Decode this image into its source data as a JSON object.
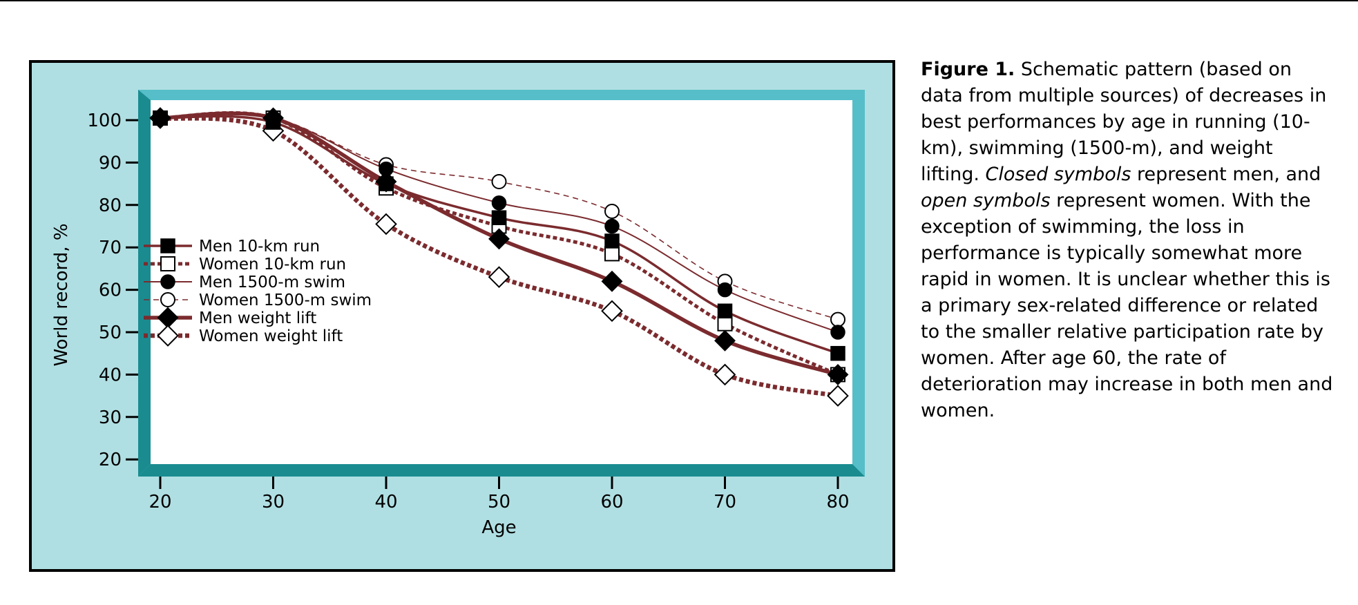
{
  "caption": {
    "label": "Figure 1.",
    "part1": " Schematic pattern (based on data from multiple sources) of decreases in best performances by age in running (10-km), swimming (1500-m), and weight lifting. ",
    "closed": "Closed symbols",
    "part2": " represent men, and ",
    "open": "open symbols",
    "part3": " represent women. With the exception of swimming, the loss in performance is typically somewhat more rapid in women. It is unclear whether this is a primary sex-related difference or related to the smaller relative participation rate by women. After age 60, the rate of deterioration may increase in both men and women."
  },
  "chart_data": {
    "type": "line",
    "title": "",
    "xlabel": "Age",
    "ylabel": "World record, %",
    "x": [
      20,
      30,
      40,
      50,
      60,
      70,
      80
    ],
    "xticks": [
      "20",
      "30",
      "40",
      "50",
      "60",
      "70",
      "80"
    ],
    "yticks": [
      "20",
      "30",
      "40",
      "50",
      "60",
      "70",
      "80",
      "90",
      "100"
    ],
    "xlim": [
      18,
      82
    ],
    "ylim": [
      18,
      107
    ],
    "grid": false,
    "legend_position": "lower-left",
    "colors": {
      "line": "#7b2b2e",
      "panel_bg": "#b0dfe3",
      "frame_light": "#56bec8",
      "frame_dark": "#1a8c90"
    },
    "series": [
      {
        "name": "Men 10-km run",
        "marker": "square-filled",
        "style": "solid-medium",
        "values": [
          100.5,
          99.5,
          85,
          77,
          71.5,
          55,
          45
        ]
      },
      {
        "name": "Women 10-km run",
        "marker": "square-open",
        "style": "dotted",
        "values": [
          100.5,
          100.5,
          84,
          75,
          68.5,
          52,
          40
        ]
      },
      {
        "name": "Men 1500-m swim",
        "marker": "circle-filled",
        "style": "solid-thin",
        "values": [
          100.5,
          100.5,
          88.5,
          80.5,
          75,
          60,
          50
        ]
      },
      {
        "name": "Women 1500-m swim",
        "marker": "circle-open",
        "style": "dashed-thin",
        "values": [
          100.5,
          100.5,
          89.5,
          85.5,
          78.5,
          62,
          53
        ]
      },
      {
        "name": "Men weight lift",
        "marker": "diamond-filled",
        "style": "solid-thick",
        "values": [
          100.5,
          100.5,
          85.5,
          72,
          62,
          48,
          40
        ]
      },
      {
        "name": "Women weight lift",
        "marker": "diamond-open",
        "style": "dotted-thick",
        "values": [
          100.5,
          97.5,
          75.5,
          63,
          55,
          40,
          35
        ]
      }
    ]
  }
}
